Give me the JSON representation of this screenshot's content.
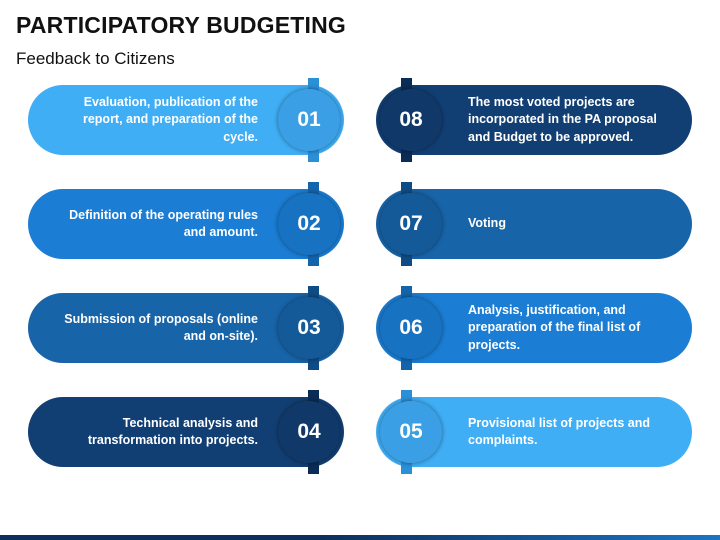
{
  "title": "PARTICIPATORY BUDGETING",
  "subtitle": "Feedback to Citizens",
  "steps": [
    {
      "number": "01",
      "text": "Evaluation, publication of the report, and preparation of the cycle.",
      "color": "#40aef5",
      "bar": "#2a8fd6",
      "circle": "#3a9fe4"
    },
    {
      "number": "02",
      "text": "Definition of the operating rules and amount.",
      "color": "#1b7dd3",
      "bar": "#1464ad",
      "circle": "#1872c2"
    },
    {
      "number": "03",
      "text": "Submission of proposals (online and on-site).",
      "color": "#1864a8",
      "bar": "#0f4c85",
      "circle": "#155a98"
    },
    {
      "number": "04",
      "text": "Technical analysis and transformation into projects.",
      "color": "#123f73",
      "bar": "#0b2c55",
      "circle": "#103868"
    },
    {
      "number": "05",
      "text": "Provisional list of projects and complaints.",
      "color": "#40aef5",
      "bar": "#2a8fd6",
      "circle": "#3a9fe4"
    },
    {
      "number": "06",
      "text": "Analysis, justification, and preparation of the final list of projects.",
      "color": "#1b7dd3",
      "bar": "#1464ad",
      "circle": "#1872c2"
    },
    {
      "number": "07",
      "text": "Voting",
      "color": "#1864a8",
      "bar": "#0f4c85",
      "circle": "#155a98"
    },
    {
      "number": "08",
      "text": "The most voted projects are incorporated in the PA proposal and Budget to be approved.",
      "color": "#123f73",
      "bar": "#0b2c55",
      "circle": "#103868"
    }
  ]
}
